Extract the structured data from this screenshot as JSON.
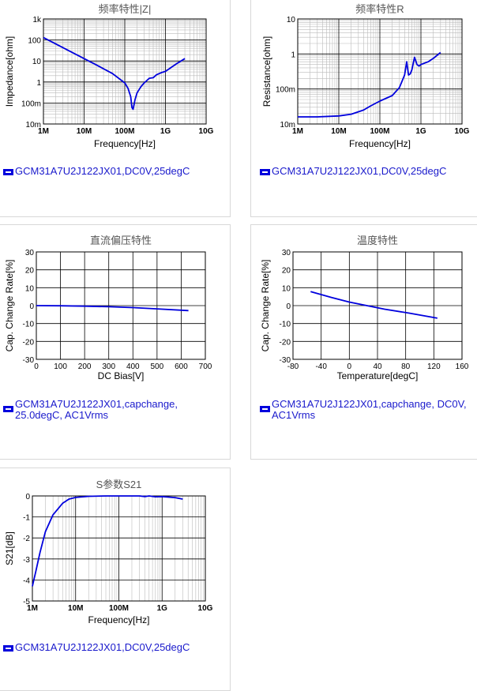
{
  "colors": {
    "series": "#0000dd",
    "legend_text": "#1a1acc",
    "major_grid": "#000000",
    "minor_grid": "#bbbbbb"
  },
  "legend_icon": "minus-box-icon",
  "chart_data": [
    {
      "id": "impedance",
      "type": "line",
      "title": "频率特性|Z|",
      "xlabel": "Frequency[Hz]",
      "ylabel": "Impedance[ohm]",
      "x_scale": "log",
      "y_scale": "log",
      "xlim": [
        1000000,
        10000000000
      ],
      "ylim": [
        0.01,
        1000
      ],
      "x_ticks": [
        1000000,
        10000000,
        100000000,
        1000000000,
        10000000000
      ],
      "x_tick_labels": [
        "1M",
        "10M",
        "100M",
        "1G",
        "10G"
      ],
      "y_ticks": [
        0.01,
        0.1,
        1,
        10,
        100,
        1000
      ],
      "y_tick_labels": [
        "10m",
        "100m",
        "1",
        "10",
        "100",
        "1k"
      ],
      "grid": true,
      "legend": "GCM31A7U2J122JX01,DC0V,25degC",
      "series": [
        {
          "name": "GCM31A7U2J122JX01,DC0V,25degC",
          "x": [
            1000000,
            2000000,
            5000000,
            10000000,
            20000000,
            50000000,
            100000000,
            120000000,
            140000000,
            150000000,
            160000000,
            180000000,
            200000000,
            250000000,
            300000000,
            400000000,
            500000000,
            600000000,
            800000000,
            1000000000,
            1500000000,
            2000000000,
            3000000000
          ],
          "y": [
            130,
            65,
            26,
            13,
            6.5,
            2.5,
            0.9,
            0.5,
            0.2,
            0.06,
            0.05,
            0.15,
            0.3,
            0.6,
            0.9,
            1.5,
            1.6,
            2.2,
            2.8,
            3.2,
            5.5,
            8,
            13
          ]
        }
      ]
    },
    {
      "id": "resistance",
      "type": "line",
      "title": "频率特性R",
      "xlabel": "Frequency[Hz]",
      "ylabel": "Resistance[ohm]",
      "x_scale": "log",
      "y_scale": "log",
      "xlim": [
        1000000,
        10000000000
      ],
      "ylim": [
        0.01,
        10
      ],
      "x_ticks": [
        1000000,
        10000000,
        100000000,
        1000000000,
        10000000000
      ],
      "x_tick_labels": [
        "1M",
        "10M",
        "100M",
        "1G",
        "10G"
      ],
      "y_ticks": [
        0.01,
        0.1,
        1,
        10
      ],
      "y_tick_labels": [
        "10m",
        "100m",
        "1",
        "10"
      ],
      "grid": true,
      "legend": "GCM31A7U2J122JX01,DC0V,25degC",
      "series": [
        {
          "name": "GCM31A7U2J122JX01,DC0V,25degC",
          "x": [
            1000000,
            3000000,
            10000000,
            20000000,
            40000000,
            60000000,
            100000000,
            200000000,
            300000000,
            400000000,
            450000000,
            500000000,
            550000000,
            600000000,
            700000000,
            800000000,
            900000000,
            1000000000,
            1500000000,
            2000000000,
            3000000000
          ],
          "y": [
            0.016,
            0.016,
            0.017,
            0.019,
            0.025,
            0.033,
            0.045,
            0.065,
            0.11,
            0.25,
            0.6,
            0.25,
            0.27,
            0.35,
            0.8,
            0.5,
            0.45,
            0.5,
            0.6,
            0.75,
            1.1
          ]
        }
      ]
    },
    {
      "id": "dcbias",
      "type": "line",
      "title": "直流偏压特性",
      "xlabel": "DC Bias[V]",
      "ylabel": "Cap. Change Rate[%]",
      "x_scale": "linear",
      "y_scale": "linear",
      "xlim": [
        0,
        700
      ],
      "ylim": [
        -30,
        30
      ],
      "x_ticks": [
        0,
        100,
        200,
        300,
        400,
        500,
        600,
        700
      ],
      "x_tick_labels": [
        "0",
        "100",
        "200",
        "300",
        "400",
        "500",
        "600",
        "700"
      ],
      "y_ticks": [
        -30,
        -20,
        -10,
        0,
        10,
        20,
        30
      ],
      "y_tick_labels": [
        "-30",
        "-20",
        "-10",
        "0",
        "10",
        "20",
        "30"
      ],
      "grid": true,
      "legend": "GCM31A7U2J122JX01,capchange, 25.0degC, AC1Vrms",
      "series": [
        {
          "name": "GCM31A7U2J122JX01,capchange, 25.0degC, AC1Vrms",
          "x": [
            0,
            100,
            200,
            300,
            400,
            500,
            630
          ],
          "y": [
            0,
            -0.1,
            -0.3,
            -0.6,
            -1.1,
            -1.8,
            -2.8
          ]
        }
      ]
    },
    {
      "id": "temperature",
      "type": "line",
      "title": "温度特性",
      "xlabel": "Temperature[degC]",
      "ylabel": "Cap. Change Rate[%]",
      "x_scale": "linear",
      "y_scale": "linear",
      "xlim": [
        -80,
        160
      ],
      "ylim": [
        -30,
        30
      ],
      "x_ticks": [
        -80,
        -40,
        0,
        40,
        80,
        120,
        160
      ],
      "x_tick_labels": [
        "-80",
        "-40",
        "0",
        "40",
        "80",
        "120",
        "160"
      ],
      "y_ticks": [
        -30,
        -20,
        -10,
        0,
        10,
        20,
        30
      ],
      "y_tick_labels": [
        "-30",
        "-20",
        "-10",
        "0",
        "10",
        "20",
        "30"
      ],
      "grid": true,
      "legend": "GCM31A7U2J122JX01,capchange, DC0V, AC1Vrms",
      "series": [
        {
          "name": "GCM31A7U2J122JX01,capchange, DC0V, AC1Vrms",
          "x": [
            -55,
            -25,
            0,
            25,
            50,
            85,
            125
          ],
          "y": [
            7.8,
            4.5,
            2,
            0,
            -2,
            -4.2,
            -7
          ]
        }
      ]
    },
    {
      "id": "s21",
      "type": "line",
      "title": "S参数S21",
      "xlabel": "Frequency[Hz]",
      "ylabel": "S21[dB]",
      "x_scale": "log",
      "y_scale": "linear",
      "xlim": [
        1000000,
        10000000000
      ],
      "ylim": [
        -5,
        0
      ],
      "x_ticks": [
        1000000,
        10000000,
        100000000,
        1000000000,
        10000000000
      ],
      "x_tick_labels": [
        "1M",
        "10M",
        "100M",
        "1G",
        "10G"
      ],
      "y_ticks": [
        -5,
        -4,
        -3,
        -2,
        -1,
        0
      ],
      "y_tick_labels": [
        "-5",
        "-4",
        "-3",
        "-2",
        "-1",
        "0"
      ],
      "grid": true,
      "legend": "GCM31A7U2J122JX01,DC0V,25degC",
      "series": [
        {
          "name": "GCM31A7U2J122JX01,DC0V,25degC",
          "x": [
            1000000,
            1200000,
            1500000,
            2000000,
            3000000,
            5000000,
            7000000,
            10000000,
            20000000,
            50000000,
            100000000,
            300000000,
            400000000,
            500000000,
            700000000,
            1000000000,
            2000000000,
            3000000000
          ],
          "y": [
            -4.3,
            -3.6,
            -2.7,
            -1.7,
            -0.9,
            -0.35,
            -0.15,
            -0.07,
            -0.02,
            0,
            0,
            0,
            -0.03,
            0,
            -0.04,
            -0.03,
            -0.08,
            -0.15
          ]
        }
      ]
    }
  ]
}
